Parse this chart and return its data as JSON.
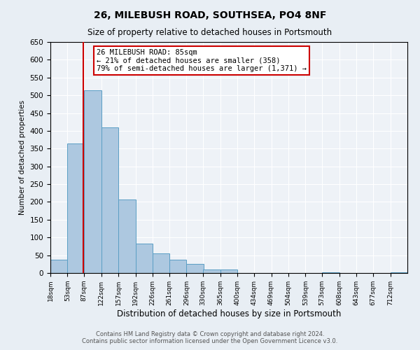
{
  "title": "26, MILEBUSH ROAD, SOUTHSEA, PO4 8NF",
  "subtitle": "Size of property relative to detached houses in Portsmouth",
  "xlabel": "Distribution of detached houses by size in Portsmouth",
  "ylabel": "Number of detached properties",
  "bin_labels": [
    "18sqm",
    "53sqm",
    "87sqm",
    "122sqm",
    "157sqm",
    "192sqm",
    "226sqm",
    "261sqm",
    "296sqm",
    "330sqm",
    "365sqm",
    "400sqm",
    "434sqm",
    "469sqm",
    "504sqm",
    "539sqm",
    "573sqm",
    "608sqm",
    "643sqm",
    "677sqm",
    "712sqm"
  ],
  "bin_edges": [
    18,
    53,
    87,
    122,
    157,
    192,
    226,
    261,
    296,
    330,
    365,
    400,
    434,
    469,
    504,
    539,
    573,
    608,
    643,
    677,
    712
  ],
  "bar_heights": [
    38,
    365,
    515,
    410,
    207,
    83,
    55,
    38,
    25,
    10,
    10,
    0,
    0,
    0,
    0,
    0,
    2,
    0,
    0,
    0,
    2
  ],
  "bar_color": "#adc8e0",
  "bar_edge_color": "#5a9ec4",
  "bar_linewidth": 0.7,
  "bin_width": 35,
  "property_size": 85,
  "vline_color": "#cc0000",
  "vline_linewidth": 1.5,
  "annotation_title": "26 MILEBUSH ROAD: 85sqm",
  "annotation_line1": "← 21% of detached houses are smaller (358)",
  "annotation_line2": "79% of semi-detached houses are larger (1,371) →",
  "annotation_box_color": "#cc0000",
  "annotation_fontsize": 7.5,
  "ylim": [
    0,
    650
  ],
  "xlim_left": 18,
  "xlim_right": 747,
  "yticks": [
    0,
    50,
    100,
    150,
    200,
    250,
    300,
    350,
    400,
    450,
    500,
    550,
    600,
    650
  ],
  "footer1": "Contains HM Land Registry data © Crown copyright and database right 2024.",
  "footer2": "Contains public sector information licensed under the Open Government Licence v3.0.",
  "bg_color": "#e8eef4",
  "plot_bg_color": "#eef2f7",
  "grid_color": "#ffffff",
  "title_fontsize": 10,
  "subtitle_fontsize": 8.5,
  "xlabel_fontsize": 8.5,
  "ylabel_fontsize": 7.5,
  "xtick_fontsize": 6.5,
  "ytick_fontsize": 7.5,
  "footer_fontsize": 6
}
